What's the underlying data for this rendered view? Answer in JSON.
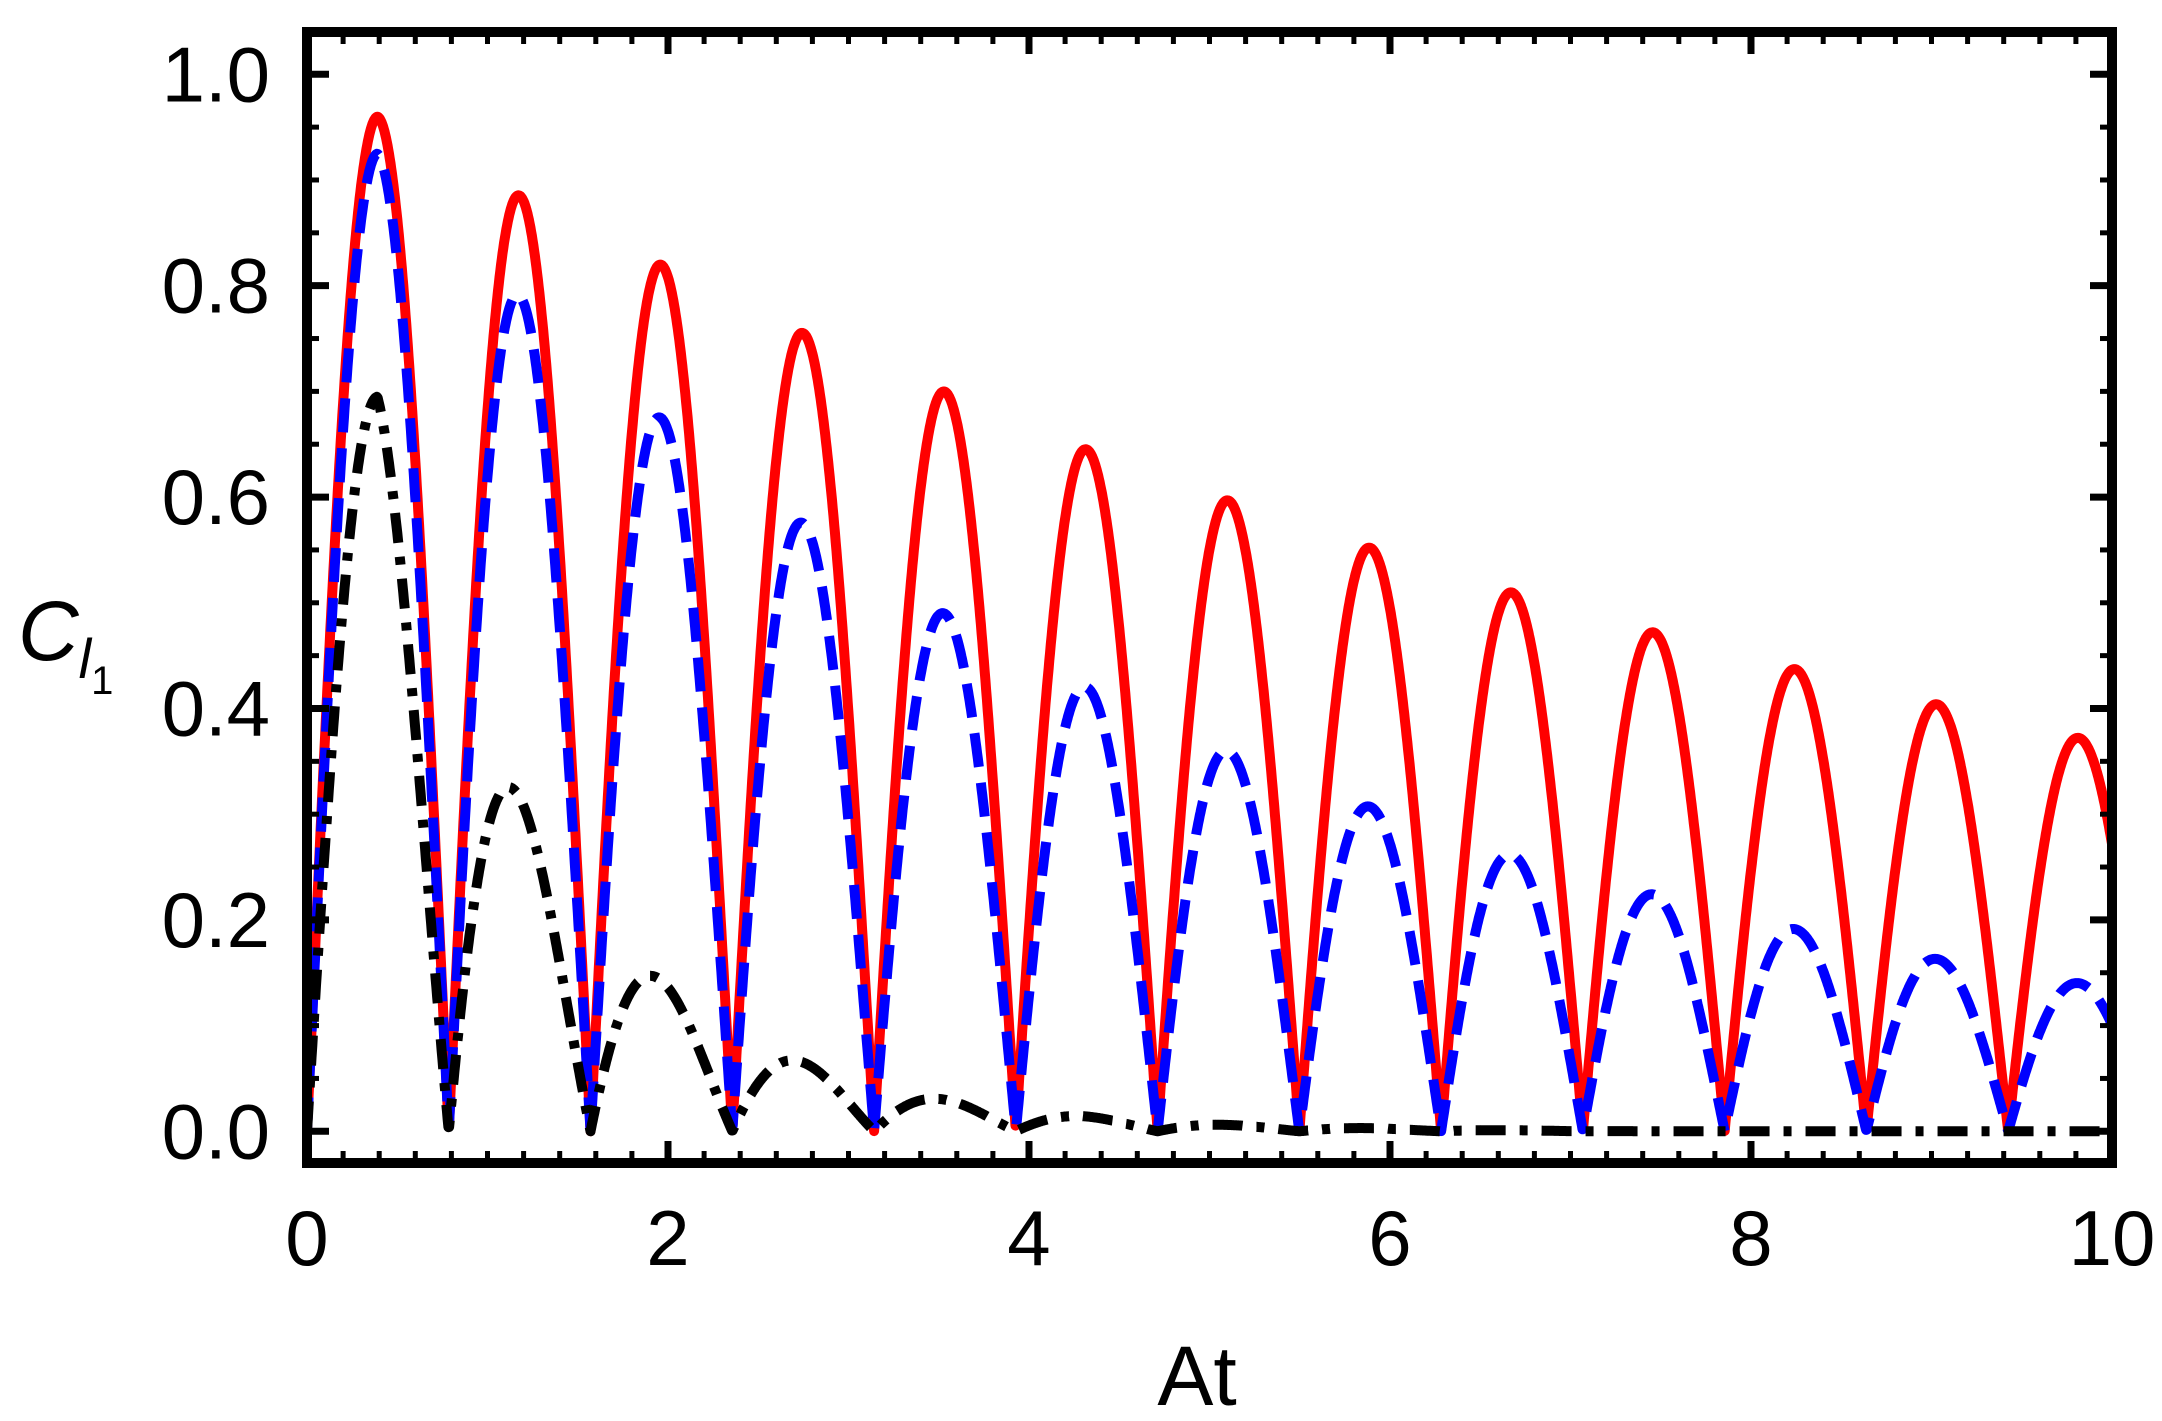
{
  "chart_data": {
    "type": "line",
    "xlabel": "At",
    "ylabel": {
      "main": "C",
      "sub1": "l",
      "sub2": "1"
    },
    "xlim": [
      0,
      10
    ],
    "ylim": [
      -0.03,
      1.04
    ],
    "xticks": [
      0,
      2,
      4,
      6,
      8,
      10
    ],
    "xtick_labels": [
      "0",
      "2",
      "4",
      "6",
      "8",
      "10"
    ],
    "yticks": [
      0.0,
      0.2,
      0.4,
      0.6,
      0.8,
      1.0
    ],
    "ytick_labels": [
      "0.0",
      "0.2",
      "0.4",
      "0.6",
      "0.8",
      "1.0"
    ],
    "grid": false,
    "frame": true,
    "series": [
      {
        "style": "solid",
        "color": "#ff0000",
        "model": "|sin(4t)| envelope",
        "peaks": [
          {
            "x": 0.39,
            "y": 0.96
          },
          {
            "x": 1.18,
            "y": 0.885
          },
          {
            "x": 1.96,
            "y": 0.82
          },
          {
            "x": 2.75,
            "y": 0.755
          },
          {
            "x": 3.53,
            "y": 0.7
          },
          {
            "x": 4.32,
            "y": 0.645
          },
          {
            "x": 5.1,
            "y": 0.597
          },
          {
            "x": 5.89,
            "y": 0.552
          },
          {
            "x": 6.67,
            "y": 0.51
          },
          {
            "x": 7.46,
            "y": 0.472
          },
          {
            "x": 8.25,
            "y": 0.437
          },
          {
            "x": 9.03,
            "y": 0.404
          },
          {
            "x": 9.82,
            "y": 0.372
          }
        ],
        "end_value": 0.27
      },
      {
        "style": "dashed",
        "color": "#0000ff",
        "model": "|sin(4t)| envelope",
        "peaks": [
          {
            "x": 0.39,
            "y": 0.925
          },
          {
            "x": 1.18,
            "y": 0.79
          },
          {
            "x": 1.96,
            "y": 0.675
          },
          {
            "x": 2.75,
            "y": 0.575
          },
          {
            "x": 3.53,
            "y": 0.49
          },
          {
            "x": 4.32,
            "y": 0.42
          },
          {
            "x": 5.1,
            "y": 0.36
          },
          {
            "x": 5.89,
            "y": 0.307
          },
          {
            "x": 6.67,
            "y": 0.262
          },
          {
            "x": 7.46,
            "y": 0.224
          },
          {
            "x": 8.25,
            "y": 0.191
          },
          {
            "x": 9.03,
            "y": 0.163
          },
          {
            "x": 9.82,
            "y": 0.14
          }
        ],
        "end_value": 0.095
      },
      {
        "style": "dashdot",
        "color": "#000000",
        "model": "|sin(4t)| envelope",
        "peaks": [
          {
            "x": 0.39,
            "y": 0.695
          },
          {
            "x": 1.18,
            "y": 0.315
          },
          {
            "x": 1.96,
            "y": 0.143
          },
          {
            "x": 2.75,
            "y": 0.065
          },
          {
            "x": 3.53,
            "y": 0.03
          },
          {
            "x": 4.32,
            "y": 0.014
          },
          {
            "x": 5.1,
            "y": 0.006
          },
          {
            "x": 5.89,
            "y": 0.003
          },
          {
            "x": 6.67,
            "y": 0.001
          },
          {
            "x": 7.46,
            "y": 0.0
          },
          {
            "x": 8.25,
            "y": 0.0
          },
          {
            "x": 9.03,
            "y": 0.0
          },
          {
            "x": 9.82,
            "y": 0.0
          }
        ],
        "end_value": 0.0
      }
    ]
  }
}
